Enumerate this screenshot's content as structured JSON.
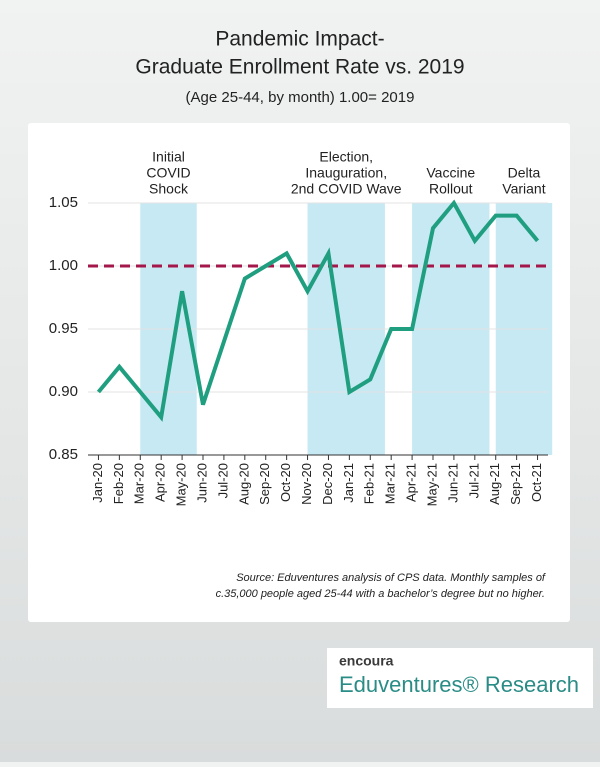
{
  "chart_data": {
    "type": "line",
    "title": [
      "Pandemic Impact-",
      "Graduate Enrollment Rate vs. 2019"
    ],
    "subtitle": "(Age 25-44, by month) 1.00= 2019",
    "categories": [
      "Jan-20",
      "Feb-20",
      "Mar-20",
      "Apr-20",
      "May-20",
      "Jun-20",
      "Jul-20",
      "Aug-20",
      "Sep-20",
      "Oct-20",
      "Nov-20",
      "Dec-20",
      "Jan-21",
      "Feb-21",
      "Mar-21",
      "Apr-21",
      "May-21",
      "Jun-21",
      "Jul-21",
      "Aug-21",
      "Sep-21",
      "Oct-21"
    ],
    "series": [
      {
        "color": "#1f9e80",
        "values": [
          0.9,
          0.92,
          0.9,
          0.88,
          0.98,
          0.89,
          0.94,
          0.99,
          1.0,
          1.01,
          0.98,
          1.01,
          0.9,
          0.91,
          0.95,
          0.95,
          1.03,
          1.05,
          1.02,
          1.04,
          1.04,
          1.02
        ]
      }
    ],
    "ylim": [
      0.85,
      1.05
    ],
    "yticks": [
      {
        "value": 0.85,
        "label": "0.85"
      },
      {
        "value": 0.9,
        "label": "0.90"
      },
      {
        "value": 0.95,
        "label": "0.95"
      },
      {
        "value": 1.0,
        "label": "1.00"
      },
      {
        "value": 1.05,
        "label": "1.05"
      }
    ],
    "grid": true,
    "reference_line": {
      "value": 1.0,
      "color": "#a3174a"
    },
    "regions": [
      {
        "from": "Mar-20",
        "to": "May-20",
        "label": [
          "Initial",
          "COVID",
          "Shock"
        ]
      },
      {
        "from": "Nov-20",
        "to": "Feb-21",
        "label": [
          "Election,",
          "Inauguration,",
          "2nd COVID Wave"
        ]
      },
      {
        "from": "Apr-21",
        "to": "Jul-21",
        "label": [
          "Vaccine",
          "Rollout"
        ]
      },
      {
        "from": "Aug-21",
        "to": "Oct-21",
        "label": [
          "Delta",
          "Variant"
        ]
      }
    ],
    "region_color": "#c6e9f3",
    "source": [
      "Source: Eduventures analysis of CPS data. Monthly samples of",
      "c.35,000 people aged 25-44 with a bachelor’s degree but no higher."
    ]
  },
  "logo": {
    "brand": "encoura",
    "name": "Eduventures® Research"
  }
}
